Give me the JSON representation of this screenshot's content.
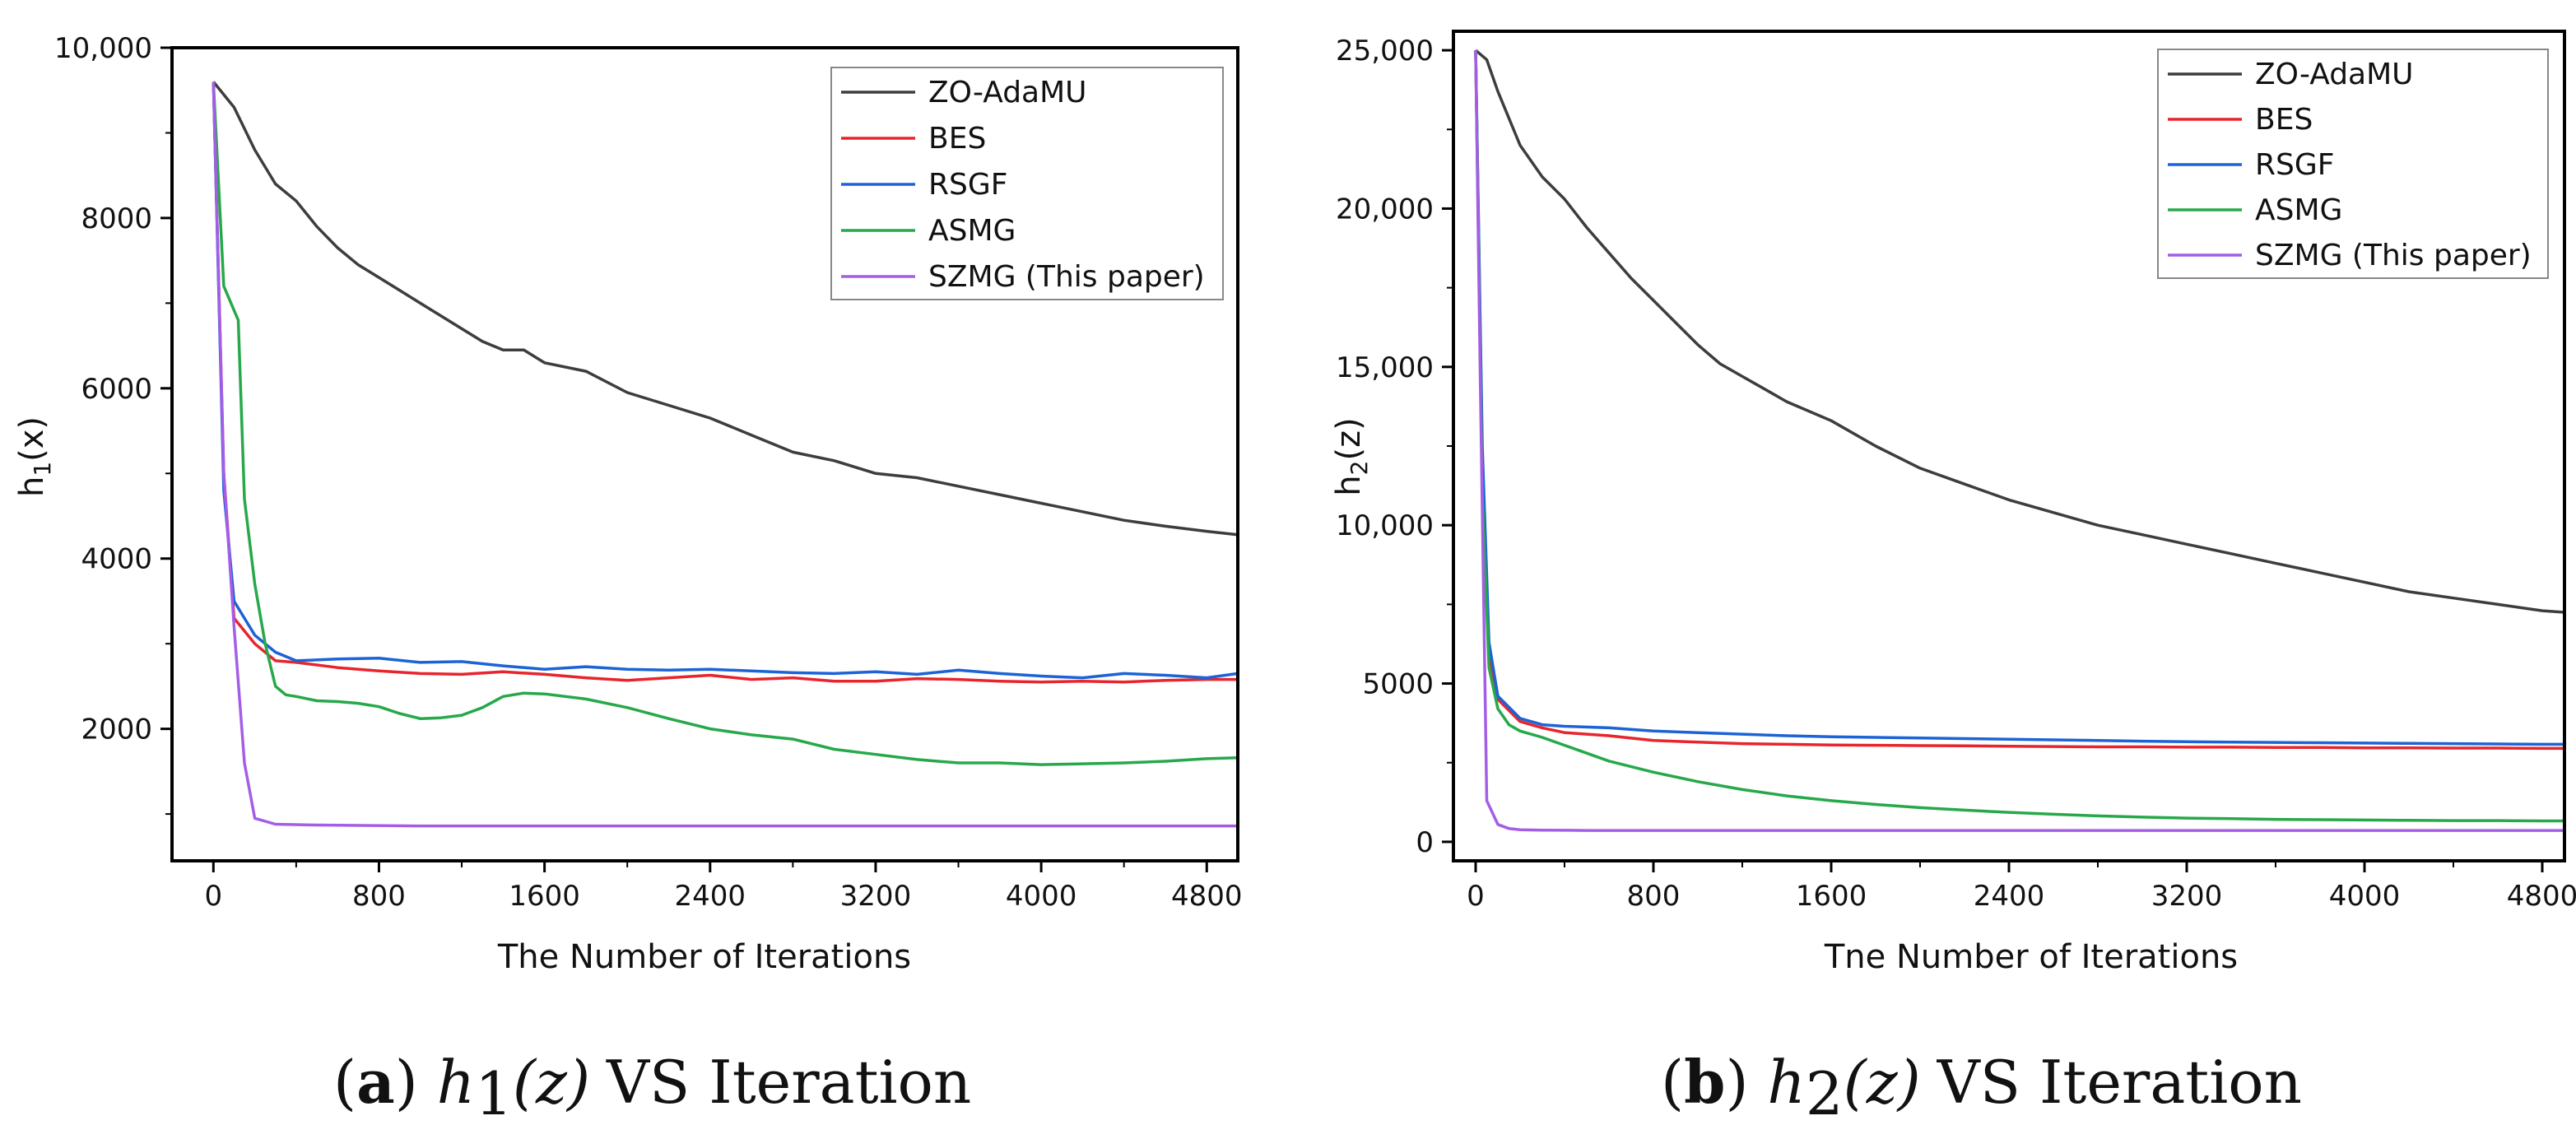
{
  "chart_data": [
    {
      "type": "line",
      "xlabel": "The Number of Iterations",
      "ylabel_base": "h",
      "ylabel_sub": "1",
      "ylabel_tail": "(x)",
      "xlim": [
        -200,
        4950
      ],
      "ylim": [
        450,
        10000
      ],
      "xticks": [
        0,
        800,
        1600,
        2400,
        3200,
        4000,
        4800
      ],
      "xtick_labels": [
        "0",
        "800",
        "1600",
        "2400",
        "3200",
        "4000",
        "4800"
      ],
      "yticks": [
        2000,
        4000,
        6000,
        8000,
        10000
      ],
      "ytick_labels": [
        "2000",
        "4000",
        "6000",
        "8000",
        "10,000"
      ],
      "legend_position": "top-right",
      "grid": false,
      "caption_letter": "a",
      "caption_fn": "h",
      "caption_sub": "1",
      "caption_arg": "(z)",
      "caption_tail": "VS Iteration",
      "series": [
        {
          "name": "ZO-AdaMU",
          "color": "#3d3d3d",
          "x": [
            0,
            100,
            200,
            300,
            400,
            500,
            600,
            700,
            800,
            900,
            1000,
            1100,
            1200,
            1300,
            1400,
            1500,
            1600,
            1800,
            2000,
            2200,
            2400,
            2600,
            2800,
            3000,
            3200,
            3400,
            3600,
            3800,
            4000,
            4200,
            4400,
            4600,
            4800,
            4950
          ],
          "y": [
            9600,
            9300,
            8800,
            8400,
            8200,
            7900,
            7650,
            7450,
            7300,
            7150,
            7000,
            6850,
            6700,
            6550,
            6450,
            6450,
            6300,
            6200,
            5950,
            5800,
            5650,
            5450,
            5250,
            5150,
            5000,
            4950,
            4850,
            4750,
            4650,
            4550,
            4450,
            4380,
            4320,
            4280
          ]
        },
        {
          "name": "BES",
          "color": "#e8242c",
          "x": [
            0,
            50,
            100,
            200,
            300,
            400,
            600,
            800,
            1000,
            1200,
            1400,
            1600,
            1800,
            2000,
            2200,
            2400,
            2600,
            2800,
            3000,
            3200,
            3400,
            3600,
            3800,
            4000,
            4200,
            4400,
            4600,
            4800,
            4950
          ],
          "y": [
            9600,
            5000,
            3300,
            3000,
            2800,
            2780,
            2720,
            2680,
            2650,
            2640,
            2670,
            2640,
            2600,
            2570,
            2600,
            2630,
            2580,
            2600,
            2560,
            2560,
            2590,
            2580,
            2560,
            2550,
            2560,
            2550,
            2570,
            2580,
            2580
          ]
        },
        {
          "name": "RSGF",
          "color": "#1c63d6",
          "x": [
            0,
            50,
            100,
            200,
            300,
            400,
            600,
            800,
            1000,
            1200,
            1400,
            1600,
            1800,
            2000,
            2200,
            2400,
            2600,
            2800,
            3000,
            3200,
            3400,
            3600,
            3800,
            4000,
            4200,
            4400,
            4600,
            4800,
            4950
          ],
          "y": [
            9600,
            4800,
            3500,
            3100,
            2900,
            2800,
            2820,
            2830,
            2780,
            2790,
            2740,
            2700,
            2730,
            2700,
            2690,
            2700,
            2680,
            2660,
            2650,
            2670,
            2640,
            2690,
            2650,
            2620,
            2600,
            2650,
            2630,
            2600,
            2650
          ]
        },
        {
          "name": "ASMG",
          "color": "#27a84a",
          "x": [
            0,
            50,
            120,
            150,
            200,
            250,
            300,
            350,
            400,
            500,
            600,
            700,
            800,
            900,
            1000,
            1100,
            1200,
            1300,
            1400,
            1500,
            1600,
            1800,
            2000,
            2200,
            2400,
            2600,
            2800,
            3000,
            3200,
            3400,
            3600,
            3800,
            4000,
            4200,
            4400,
            4600,
            4800,
            4950
          ],
          "y": [
            9600,
            7200,
            6800,
            4700,
            3700,
            3000,
            2500,
            2400,
            2380,
            2330,
            2320,
            2300,
            2260,
            2180,
            2120,
            2130,
            2160,
            2250,
            2380,
            2420,
            2410,
            2350,
            2250,
            2120,
            2000,
            1930,
            1880,
            1760,
            1700,
            1640,
            1600,
            1600,
            1580,
            1590,
            1600,
            1620,
            1650,
            1660
          ]
        },
        {
          "name": "SZMG (This paper)",
          "color": "#a45ee5",
          "x": [
            0,
            50,
            100,
            150,
            200,
            300,
            500,
            1000,
            2000,
            3000,
            4000,
            4950
          ],
          "y": [
            9600,
            5000,
            3200,
            1600,
            950,
            880,
            870,
            860,
            860,
            860,
            860,
            860
          ]
        }
      ]
    },
    {
      "type": "line",
      "xlabel": "Tne Number of Iterations",
      "ylabel_base": "h",
      "ylabel_sub": "2",
      "ylabel_tail": "(z)",
      "xlim": [
        -100,
        4900
      ],
      "ylim": [
        -600,
        25600
      ],
      "xticks": [
        0,
        800,
        1600,
        2400,
        3200,
        4000,
        4800
      ],
      "xtick_labels": [
        "0",
        "800",
        "1600",
        "2400",
        "3200",
        "4000",
        "4800"
      ],
      "yticks": [
        0,
        5000,
        10000,
        15000,
        20000,
        25000
      ],
      "ytick_labels": [
        "0",
        "5000",
        "10,000",
        "15,000",
        "20,000",
        "25,000"
      ],
      "legend_position": "top-right",
      "grid": false,
      "caption_letter": "b",
      "caption_fn": "h",
      "caption_sub": "2",
      "caption_arg": "(z)",
      "caption_tail": "VS Iteration",
      "series": [
        {
          "name": "ZO-AdaMU",
          "color": "#3d3d3d",
          "x": [
            0,
            50,
            100,
            200,
            300,
            400,
            500,
            600,
            700,
            800,
            900,
            1000,
            1100,
            1200,
            1300,
            1400,
            1600,
            1800,
            2000,
            2200,
            2400,
            2600,
            2800,
            3000,
            3200,
            3400,
            3600,
            3800,
            4000,
            4200,
            4400,
            4600,
            4800,
            4900
          ],
          "y": [
            25000,
            24700,
            23700,
            22000,
            21000,
            20300,
            19400,
            18600,
            17800,
            17100,
            16400,
            15700,
            15100,
            14700,
            14300,
            13900,
            13300,
            12500,
            11800,
            11300,
            10800,
            10400,
            10000,
            9700,
            9400,
            9100,
            8800,
            8500,
            8200,
            7900,
            7700,
            7500,
            7300,
            7250
          ]
        },
        {
          "name": "BES",
          "color": "#e8242c",
          "x": [
            0,
            30,
            60,
            100,
            200,
            300,
            400,
            600,
            800,
            1000,
            1200,
            1400,
            1600,
            1800,
            2000,
            2200,
            2400,
            2600,
            2800,
            3000,
            3200,
            3400,
            3600,
            3800,
            4000,
            4200,
            4400,
            4600,
            4800,
            4900
          ],
          "y": [
            25000,
            12000,
            6000,
            4500,
            3800,
            3600,
            3450,
            3350,
            3200,
            3150,
            3100,
            3080,
            3060,
            3050,
            3040,
            3030,
            3020,
            3010,
            3000,
            3000,
            2990,
            2990,
            2980,
            2980,
            2970,
            2970,
            2960,
            2960,
            2950,
            2950
          ]
        },
        {
          "name": "RSGF",
          "color": "#1c63d6",
          "x": [
            0,
            30,
            60,
            100,
            200,
            300,
            400,
            600,
            800,
            1000,
            1200,
            1400,
            1600,
            1800,
            2000,
            2200,
            2400,
            2600,
            2800,
            3000,
            3200,
            3400,
            3600,
            3800,
            4000,
            4200,
            4400,
            4600,
            4800,
            4900
          ],
          "y": [
            25000,
            12500,
            6300,
            4600,
            3900,
            3700,
            3650,
            3600,
            3500,
            3450,
            3400,
            3350,
            3320,
            3300,
            3280,
            3260,
            3240,
            3220,
            3200,
            3180,
            3160,
            3150,
            3140,
            3130,
            3120,
            3110,
            3100,
            3090,
            3080,
            3080
          ]
        },
        {
          "name": "ASMG",
          "color": "#27a84a",
          "x": [
            0,
            30,
            60,
            100,
            150,
            200,
            300,
            400,
            600,
            800,
            1000,
            1200,
            1400,
            1600,
            1800,
            2000,
            2200,
            2400,
            2600,
            2800,
            3000,
            3200,
            3400,
            3600,
            3800,
            4000,
            4200,
            4400,
            4600,
            4800,
            4900
          ],
          "y": [
            25000,
            11000,
            5500,
            4200,
            3700,
            3500,
            3300,
            3050,
            2550,
            2200,
            1900,
            1650,
            1450,
            1300,
            1180,
            1080,
            1000,
            930,
            870,
            820,
            780,
            750,
            730,
            710,
            700,
            690,
            680,
            670,
            670,
            660,
            660
          ]
        },
        {
          "name": "SZMG (This paper)",
          "color": "#a45ee5",
          "x": [
            0,
            20,
            50,
            100,
            150,
            200,
            300,
            500,
            1000,
            2000,
            3000,
            4000,
            4900
          ],
          "y": [
            25000,
            15000,
            1300,
            550,
            420,
            380,
            370,
            360,
            360,
            360,
            360,
            360,
            360
          ]
        }
      ]
    }
  ]
}
